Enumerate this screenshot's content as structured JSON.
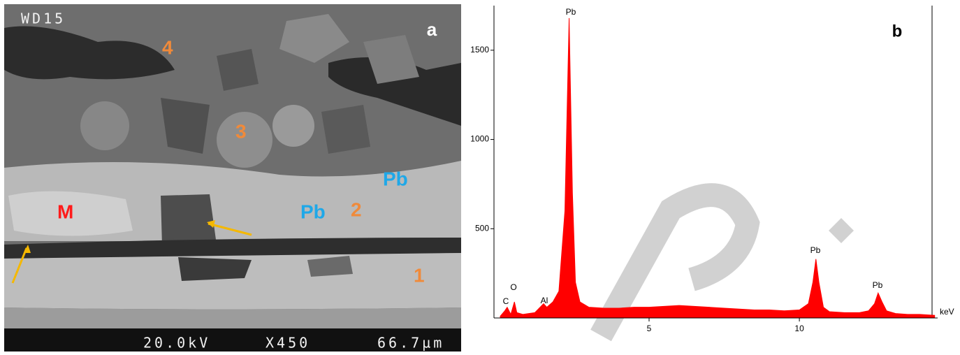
{
  "panel_a": {
    "label": "a",
    "sem_text": {
      "id": "WD15",
      "voltage": "20.0kV",
      "magnification": "X450",
      "scale": "66.7µm"
    },
    "annotations": [
      "4",
      "3",
      "2",
      "1",
      "M",
      "Pb",
      "Pb"
    ]
  },
  "chart_data": {
    "type": "area",
    "panel_label": "b",
    "x_unit": "keV",
    "xlim": [
      -0.16,
      14.6
    ],
    "xticks": [
      5,
      10
    ],
    "ylim": [
      0,
      1750
    ],
    "yticks": [
      500,
      1000,
      1500
    ],
    "series": [
      {
        "color": "#ff0000",
        "x": [
          0.05,
          0.2,
          0.28,
          0.4,
          0.52,
          0.6,
          0.8,
          1.0,
          1.2,
          1.49,
          1.6,
          1.8,
          2.0,
          2.2,
          2.34,
          2.45,
          2.55,
          2.7,
          3.0,
          3.5,
          4.0,
          4.5,
          5.0,
          5.5,
          6.0,
          6.5,
          7.0,
          7.5,
          8.0,
          8.5,
          9.0,
          9.5,
          10.0,
          10.3,
          10.45,
          10.55,
          10.65,
          10.8,
          11.0,
          11.5,
          12.0,
          12.3,
          12.5,
          12.62,
          12.75,
          12.9,
          13.2,
          13.6,
          14.0,
          14.5
        ],
        "values": [
          10,
          40,
          60,
          20,
          90,
          30,
          20,
          25,
          30,
          80,
          60,
          90,
          150,
          600,
          1680,
          700,
          200,
          90,
          60,
          55,
          55,
          60,
          60,
          65,
          70,
          65,
          60,
          55,
          50,
          45,
          45,
          40,
          45,
          80,
          200,
          330,
          200,
          60,
          35,
          30,
          30,
          40,
          80,
          140,
          90,
          40,
          25,
          20,
          20,
          15
        ]
      }
    ],
    "peak_labels": [
      "C",
      "O",
      "Al",
      "Pb",
      "Pb",
      "Pb"
    ]
  }
}
